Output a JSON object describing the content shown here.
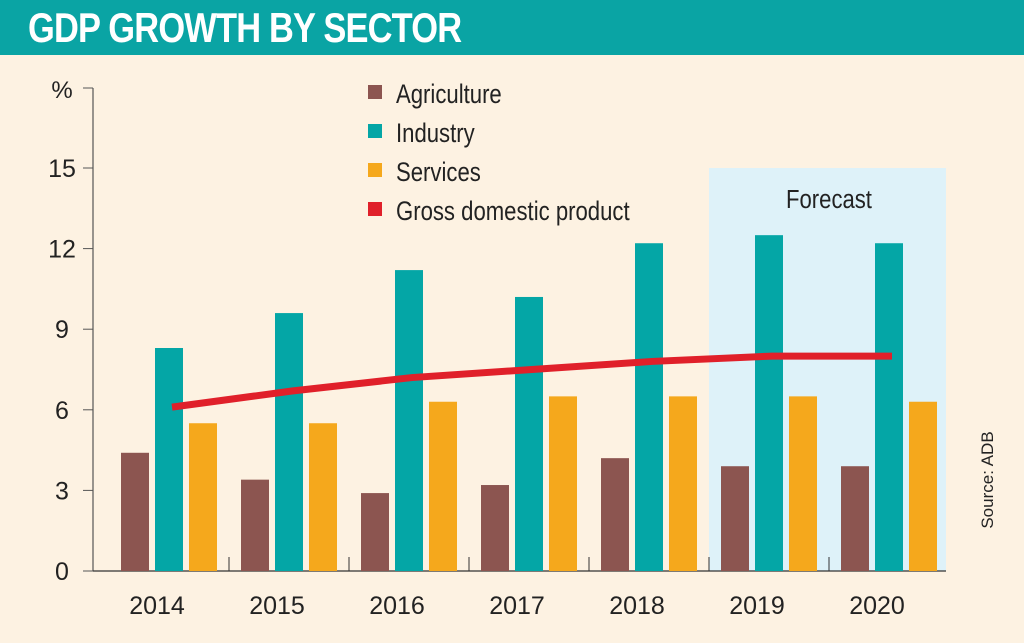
{
  "header": {
    "title": "GDP GROWTH BY SECTOR"
  },
  "source": "Source: ADB",
  "chart_data": {
    "type": "bar",
    "title": "GDP GROWTH BY SECTOR",
    "ylabel": "%",
    "ylim": [
      0,
      18
    ],
    "yticks": [
      0,
      3,
      6,
      9,
      12,
      15
    ],
    "categories": [
      "2014",
      "2015",
      "2016",
      "2017",
      "2018",
      "2019",
      "2020"
    ],
    "series": [
      {
        "name": "Agriculture",
        "type": "bar",
        "color": "#8c5550",
        "values": [
          4.4,
          3.4,
          2.9,
          3.2,
          4.2,
          3.9,
          3.9
        ]
      },
      {
        "name": "Industry",
        "type": "bar",
        "color": "#04a6a6",
        "values": [
          8.3,
          9.6,
          11.2,
          10.2,
          12.2,
          12.5,
          12.2
        ]
      },
      {
        "name": "Services",
        "type": "bar",
        "color": "#f5a81c",
        "values": [
          5.5,
          5.5,
          6.3,
          6.5,
          6.5,
          6.5,
          6.3
        ]
      },
      {
        "name": "Gross domestic product",
        "type": "line",
        "color": "#e0202a",
        "values": [
          6.1,
          6.7,
          7.2,
          7.5,
          7.8,
          8.0,
          8.0
        ]
      }
    ],
    "annotation": {
      "label": "Forecast",
      "categories": [
        "2019",
        "2020"
      ],
      "color": "#def2f9"
    },
    "legend": "top-center",
    "grid": false
  }
}
